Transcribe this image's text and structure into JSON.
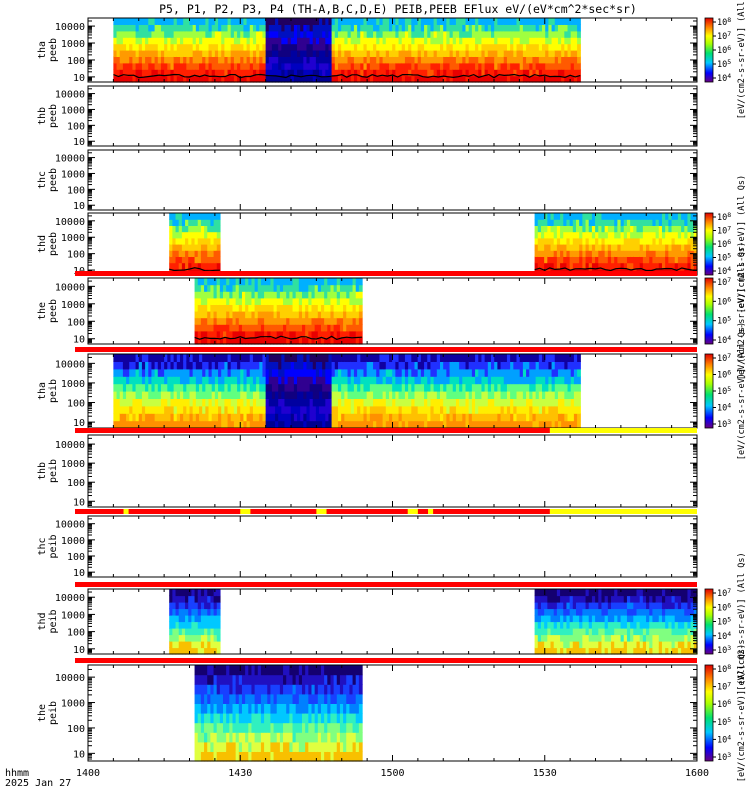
{
  "chart_data": {
    "type": "heatmap",
    "title": "P5, P1, P2, P3, P4 (TH-A,B,C,D,E) PEIB,PEEB EFlux eV/(eV*cm^2*sec*sr)",
    "x_axis": {
      "range": [
        "14:00",
        "16:00"
      ],
      "ticks": [
        "1400",
        "1430",
        "1500",
        "1530",
        "1600"
      ],
      "label_line1": "hhmm",
      "label_line2": "2025 Jan 27"
    },
    "y_ticks": [
      "10000",
      "1000",
      "100",
      "10"
    ],
    "y_scale": "log",
    "y_range": [
      5,
      30000
    ],
    "panels": [
      {
        "id": "tha_peeb",
        "label1": "tha",
        "label2": "peeb",
        "blocks": [
          {
            "t0": 5,
            "t1": 35,
            "style": "hot"
          },
          {
            "t0": 35,
            "t1": 48,
            "style": "dark"
          },
          {
            "t0": 48,
            "t1": 97,
            "style": "hot"
          }
        ],
        "potential": true,
        "mode_bar": null,
        "colorbar": {
          "ticks": [
            "10^8",
            "10^7",
            "10^6",
            "10^5",
            "10^4"
          ],
          "label": "[eV/(cm2-s-sr-eV)] (All Qs)"
        }
      },
      {
        "id": "thb_peeb",
        "label1": "thb",
        "label2": "peeb",
        "blocks": [],
        "potential": false,
        "mode_bar": null,
        "colorbar": null
      },
      {
        "id": "thc_peeb",
        "label1": "thc",
        "label2": "peeb",
        "blocks": [],
        "potential": false,
        "mode_bar": null,
        "colorbar": null
      },
      {
        "id": "thd_peeb",
        "label1": "thd",
        "label2": "peeb",
        "blocks": [
          {
            "t0": 16,
            "t1": 26,
            "style": "hot"
          },
          {
            "t0": 88,
            "t1": 120,
            "style": "hot"
          }
        ],
        "potential": true,
        "mode_bar": null,
        "colorbar": {
          "ticks": [
            "10^8",
            "10^7",
            "10^6",
            "10^5",
            "10^4"
          ],
          "label": "[eV/(cm2-s-sr-eV)] (All Qs)"
        }
      },
      {
        "id": "the_peeb",
        "label1": "the",
        "label2": "peeb",
        "blocks": [
          {
            "t0": 21,
            "t1": 54,
            "style": "hot"
          }
        ],
        "potential": true,
        "mode_bar": "red",
        "colorbar": {
          "ticks": [
            "10^7",
            "10^6",
            "10^5",
            "10^4"
          ],
          "label": "[eV/(cm2-s-sr-eV)] (All Qs)"
        }
      },
      {
        "id": "tha_peib",
        "label1": "tha",
        "label2": "peib",
        "blocks": [
          {
            "t0": 5,
            "t1": 35,
            "style": "warm"
          },
          {
            "t0": 35,
            "t1": 48,
            "style": "dark"
          },
          {
            "t0": 48,
            "t1": 97,
            "style": "warm"
          }
        ],
        "potential": false,
        "mode_bar": "red",
        "colorbar": {
          "ticks": [
            "10^7",
            "10^6",
            "10^5",
            "10^4",
            "10^3"
          ],
          "label": "[eV/(cm2-s-sr-eV)] (All Qs)"
        }
      },
      {
        "id": "thb_peib",
        "label1": "thb",
        "label2": "peib",
        "blocks": [],
        "potential": false,
        "mode_bar": "red_yellow_end",
        "colorbar": null
      },
      {
        "id": "thc_peib",
        "label1": "thc",
        "label2": "peib",
        "blocks": [],
        "potential": false,
        "mode_bar": "red_yellow_mixed",
        "colorbar": null
      },
      {
        "id": "thd_peib",
        "label1": "thd",
        "label2": "peib",
        "blocks": [
          {
            "t0": 16,
            "t1": 26,
            "style": "cool"
          },
          {
            "t0": 88,
            "t1": 120,
            "style": "cool"
          }
        ],
        "potential": false,
        "mode_bar": "red",
        "colorbar": {
          "ticks": [
            "10^7",
            "10^6",
            "10^5",
            "10^4",
            "10^3"
          ],
          "label": "[eV/(cm2-s-sr-eV)] (All Qs)"
        }
      },
      {
        "id": "the_peib",
        "label1": "the",
        "label2": "peib",
        "blocks": [
          {
            "t0": 21,
            "t1": 54,
            "style": "cool"
          }
        ],
        "potential": false,
        "mode_bar": "red",
        "colorbar": {
          "ticks": [
            "10^8",
            "10^7",
            "10^6",
            "10^5",
            "10^4",
            "10^3"
          ],
          "label": "[eV/(cm2-s-sr-eV)] (All Qs)"
        }
      }
    ]
  }
}
